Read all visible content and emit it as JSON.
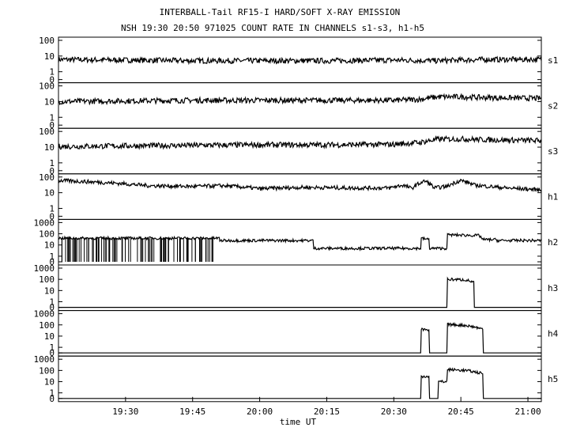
{
  "chart_data": {
    "type": "line",
    "title": "INTERBALL-Tail RF15-I HARD/SOFT X-RAY EMISSION",
    "subtitle": "NSH 19:30 20:50 971025  COUNT RATE IN CHANNELS s1-s3, h1-h5",
    "xlabel": "time UT",
    "x_range_min": [
      1155,
      1263
    ],
    "x_ticks": [
      "19:30",
      "19:45",
      "20:00",
      "20:15",
      "20:30",
      "20:45",
      "21:00"
    ],
    "x_ticks_min": [
      1170,
      1185,
      1200,
      1215,
      1230,
      1245,
      1260
    ],
    "y_scale": "log",
    "series": [
      {
        "name": "s1",
        "y_labels": [
          "100",
          "10",
          "1",
          "0"
        ],
        "ymax": 100,
        "points": [
          [
            1155,
            6
          ],
          [
            1170,
            5.5
          ],
          [
            1185,
            5
          ],
          [
            1200,
            5
          ],
          [
            1215,
            5
          ],
          [
            1230,
            5.5
          ],
          [
            1240,
            5
          ],
          [
            1250,
            6
          ],
          [
            1263,
            6
          ]
        ]
      },
      {
        "name": "s2",
        "y_labels": [
          "100",
          "10",
          "1",
          "0"
        ],
        "ymax": 100,
        "points": [
          [
            1155,
            10
          ],
          [
            1170,
            11
          ],
          [
            1185,
            12
          ],
          [
            1200,
            12
          ],
          [
            1215,
            12
          ],
          [
            1230,
            12
          ],
          [
            1236,
            14
          ],
          [
            1240,
            20
          ],
          [
            1245,
            20
          ],
          [
            1250,
            18
          ],
          [
            1263,
            16
          ]
        ]
      },
      {
        "name": "s3",
        "y_labels": [
          "100",
          "10",
          "1",
          "0"
        ],
        "ymax": 100,
        "points": [
          [
            1155,
            11
          ],
          [
            1170,
            12
          ],
          [
            1185,
            13
          ],
          [
            1200,
            14
          ],
          [
            1215,
            14
          ],
          [
            1230,
            15
          ],
          [
            1236,
            20
          ],
          [
            1240,
            32
          ],
          [
            1245,
            33
          ],
          [
            1250,
            30
          ],
          [
            1263,
            26
          ]
        ]
      },
      {
        "name": "h1",
        "y_labels": [
          "100",
          "10",
          "1",
          "0"
        ],
        "ymax": 100,
        "points": [
          [
            1155,
            60
          ],
          [
            1165,
            45
          ],
          [
            1175,
            28
          ],
          [
            1185,
            25
          ],
          [
            1192,
            28
          ],
          [
            1200,
            18
          ],
          [
            1210,
            22
          ],
          [
            1220,
            20
          ],
          [
            1229,
            20
          ],
          [
            1232,
            30
          ],
          [
            1234,
            18
          ],
          [
            1237,
            55
          ],
          [
            1239,
            20
          ],
          [
            1242,
            25
          ],
          [
            1245,
            60
          ],
          [
            1248,
            30
          ],
          [
            1255,
            20
          ],
          [
            1263,
            15
          ]
        ]
      },
      {
        "name": "h2",
        "y_labels": [
          "1000",
          "100",
          "10",
          "1",
          "0"
        ],
        "ymax": 1000,
        "points": [
          [
            1155,
            40
          ],
          [
            1180,
            40
          ],
          [
            1191,
            40
          ],
          [
            1191,
            25
          ],
          [
            1212,
            25
          ],
          [
            1212,
            5
          ],
          [
            1236,
            5
          ],
          [
            1236,
            40
          ],
          [
            1238,
            30
          ],
          [
            1238,
            5
          ],
          [
            1242,
            5
          ],
          [
            1242,
            80
          ],
          [
            1249,
            70
          ],
          [
            1250,
            30
          ],
          [
            1253,
            30
          ],
          [
            1253,
            25
          ],
          [
            1263,
            25
          ]
        ]
      },
      {
        "name": "h3",
        "y_labels": [
          "1000",
          "100",
          "10",
          "1",
          "0"
        ],
        "ymax": 1000,
        "points": [
          [
            1155,
            0
          ],
          [
            1242,
            0
          ],
          [
            1242,
            100
          ],
          [
            1246,
            90
          ],
          [
            1248,
            50
          ],
          [
            1248,
            0
          ],
          [
            1263,
            0
          ]
        ]
      },
      {
        "name": "h4",
        "y_labels": [
          "1000",
          "100",
          "10",
          "1",
          "0"
        ],
        "ymax": 1000,
        "points": [
          [
            1155,
            0
          ],
          [
            1236,
            0
          ],
          [
            1236,
            40
          ],
          [
            1238,
            30
          ],
          [
            1238,
            0
          ],
          [
            1242,
            0
          ],
          [
            1242,
            110
          ],
          [
            1246,
            90
          ],
          [
            1250,
            40
          ],
          [
            1250,
            0
          ],
          [
            1263,
            0
          ]
        ]
      },
      {
        "name": "h5",
        "y_labels": [
          "1000",
          "100",
          "10",
          "1",
          "0"
        ],
        "ymax": 1000,
        "points": [
          [
            1155,
            0
          ],
          [
            1236,
            0
          ],
          [
            1236,
            30
          ],
          [
            1238,
            30
          ],
          [
            1238,
            0
          ],
          [
            1240,
            0
          ],
          [
            1240,
            10
          ],
          [
            1242,
            10
          ],
          [
            1242,
            120
          ],
          [
            1246,
            100
          ],
          [
            1250,
            50
          ],
          [
            1250,
            0
          ],
          [
            1263,
            0
          ]
        ]
      }
    ]
  }
}
